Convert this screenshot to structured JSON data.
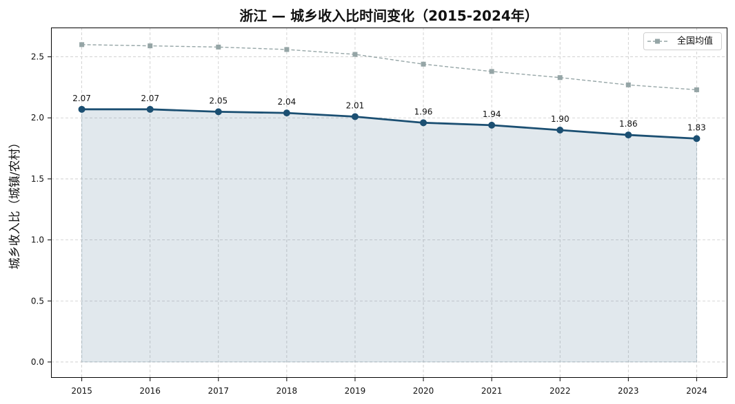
{
  "chart_data": {
    "type": "line",
    "title": "浙江 — 城乡收入比时间变化（2015-2024年）",
    "ylabel": "城乡收入比（城镇/农村）",
    "x": [
      2015,
      2016,
      2017,
      2018,
      2019,
      2020,
      2021,
      2022,
      2023,
      2024
    ],
    "xlim": [
      2014.55,
      2024.45
    ],
    "ylim": [
      -0.13,
      2.74
    ],
    "yticks": [
      0,
      0.5,
      1,
      1.5,
      2,
      2.5
    ],
    "ytick_labels": [
      "0.0",
      "0.5",
      "1.0",
      "1.5",
      "2.0",
      "2.5"
    ],
    "grid": true,
    "legend_position": "top-right",
    "series": [
      {
        "values": [
          2.07,
          2.07,
          2.05,
          2.04,
          2.01,
          1.96,
          1.94,
          1.9,
          1.86,
          1.83
        ],
        "data_labels": [
          "2.07",
          "2.07",
          "2.05",
          "2.04",
          "2.01",
          "1.96",
          "1.94",
          "1.90",
          "1.86",
          "1.83"
        ],
        "line_style": "solid",
        "marker": "circle",
        "area_fill": true,
        "color": "#1b4f72"
      },
      {
        "name": "全国均值",
        "values": [
          2.6,
          2.59,
          2.58,
          2.56,
          2.52,
          2.44,
          2.38,
          2.33,
          2.27,
          2.23
        ],
        "line_style": "dashed",
        "marker": "square",
        "color": "#95a5a6"
      }
    ]
  }
}
